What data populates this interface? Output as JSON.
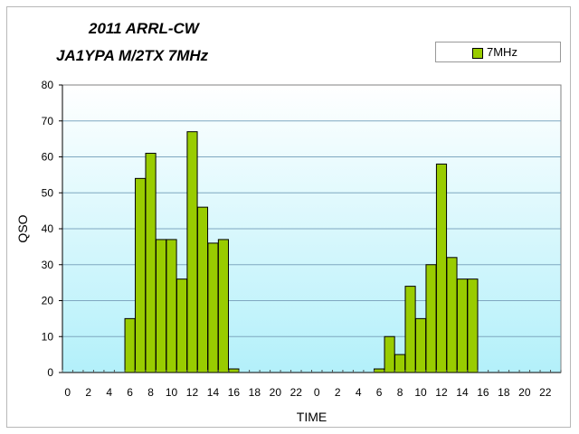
{
  "chart_data": {
    "type": "bar",
    "title": "2011 ARRL-CW",
    "subtitle": "JA1YPA M/2TX  7MHz",
    "xlabel": "TIME",
    "ylabel": "QSO",
    "ylim": [
      0,
      80
    ],
    "yticks": [
      "0",
      "10",
      "20",
      "30",
      "40",
      "50",
      "60",
      "70",
      "80"
    ],
    "categories": [
      "0",
      "1",
      "2",
      "3",
      "4",
      "5",
      "6",
      "7",
      "8",
      "9",
      "10",
      "11",
      "12",
      "13",
      "14",
      "15",
      "16",
      "17",
      "18",
      "19",
      "20",
      "21",
      "22",
      "23",
      "0",
      "1",
      "2",
      "3",
      "4",
      "5",
      "6",
      "7",
      "8",
      "9",
      "10",
      "11",
      "12",
      "13",
      "14",
      "15",
      "16",
      "17",
      "18",
      "19",
      "20",
      "21",
      "22",
      "23"
    ],
    "xtick_labels": [
      "0",
      "",
      "2",
      "",
      "4",
      "",
      "6",
      "",
      "8",
      "",
      "10",
      "",
      "12",
      "",
      "14",
      "",
      "16",
      "",
      "18",
      "",
      "20",
      "",
      "22",
      "",
      "0",
      "",
      "2",
      "",
      "4",
      "",
      "6",
      "",
      "8",
      "",
      "10",
      "",
      "12",
      "",
      "14",
      "",
      "16",
      "",
      "18",
      "",
      "20",
      "",
      "22",
      ""
    ],
    "series": [
      {
        "name": "7MHz",
        "values": [
          0,
          0,
          0,
          0,
          0,
          0,
          15,
          54,
          61,
          37,
          37,
          26,
          67,
          46,
          36,
          37,
          1,
          0,
          0,
          0,
          0,
          0,
          0,
          0,
          0,
          0,
          0,
          0,
          0,
          0,
          1,
          10,
          5,
          24,
          15,
          30,
          58,
          32,
          26,
          26,
          0,
          0,
          0,
          0,
          0,
          0,
          0,
          0
        ]
      }
    ],
    "colors": {
      "bar": "#99cc00",
      "bar_edge": "#000000",
      "plot_bg_top": "#ffffff",
      "plot_bg_bottom": "#b3f0fa",
      "grid": "#7fa7c0"
    },
    "grid": true,
    "legend_position": "top-right"
  }
}
